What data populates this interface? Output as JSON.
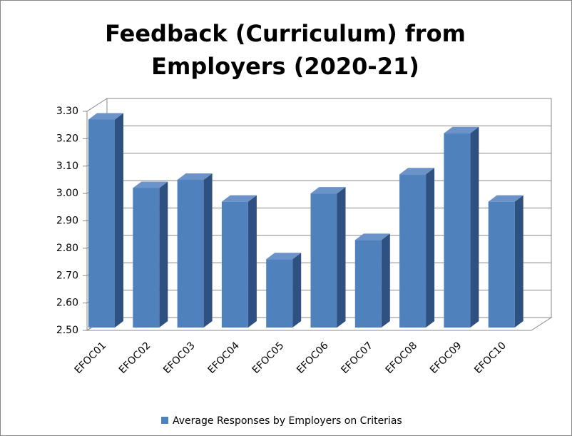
{
  "chart_data": {
    "type": "bar3d",
    "title": "Feedback (Curriculum) from Employers (2020-21)",
    "categories": [
      "EFOC01",
      "EFOC02",
      "EFOC03",
      "EFOC04",
      "EFOC05",
      "EFOC06",
      "EFOC07",
      "EFOC08",
      "EFOC09",
      "EFOC10"
    ],
    "series": [
      {
        "name": "Average Responses by Employers on Criterias",
        "color": "#4f81bd",
        "values": [
          3.27,
          3.02,
          3.05,
          2.97,
          2.76,
          3.0,
          2.83,
          3.07,
          3.22,
          2.97
        ]
      }
    ],
    "ylim": [
      2.5,
      3.3
    ],
    "yticks": [
      {
        "value": 2.5,
        "label": "2.50"
      },
      {
        "value": 2.6,
        "label": "2.60"
      },
      {
        "value": 2.7,
        "label": "2.70"
      },
      {
        "value": 2.8,
        "label": "2.80"
      },
      {
        "value": 2.9,
        "label": "2.90"
      },
      {
        "value": 3.0,
        "label": "3.00"
      },
      {
        "value": 3.1,
        "label": "3.10"
      },
      {
        "value": 3.2,
        "label": "3.20"
      },
      {
        "value": 3.3,
        "label": "3.30"
      }
    ],
    "grid": true,
    "legend": "bottom"
  }
}
